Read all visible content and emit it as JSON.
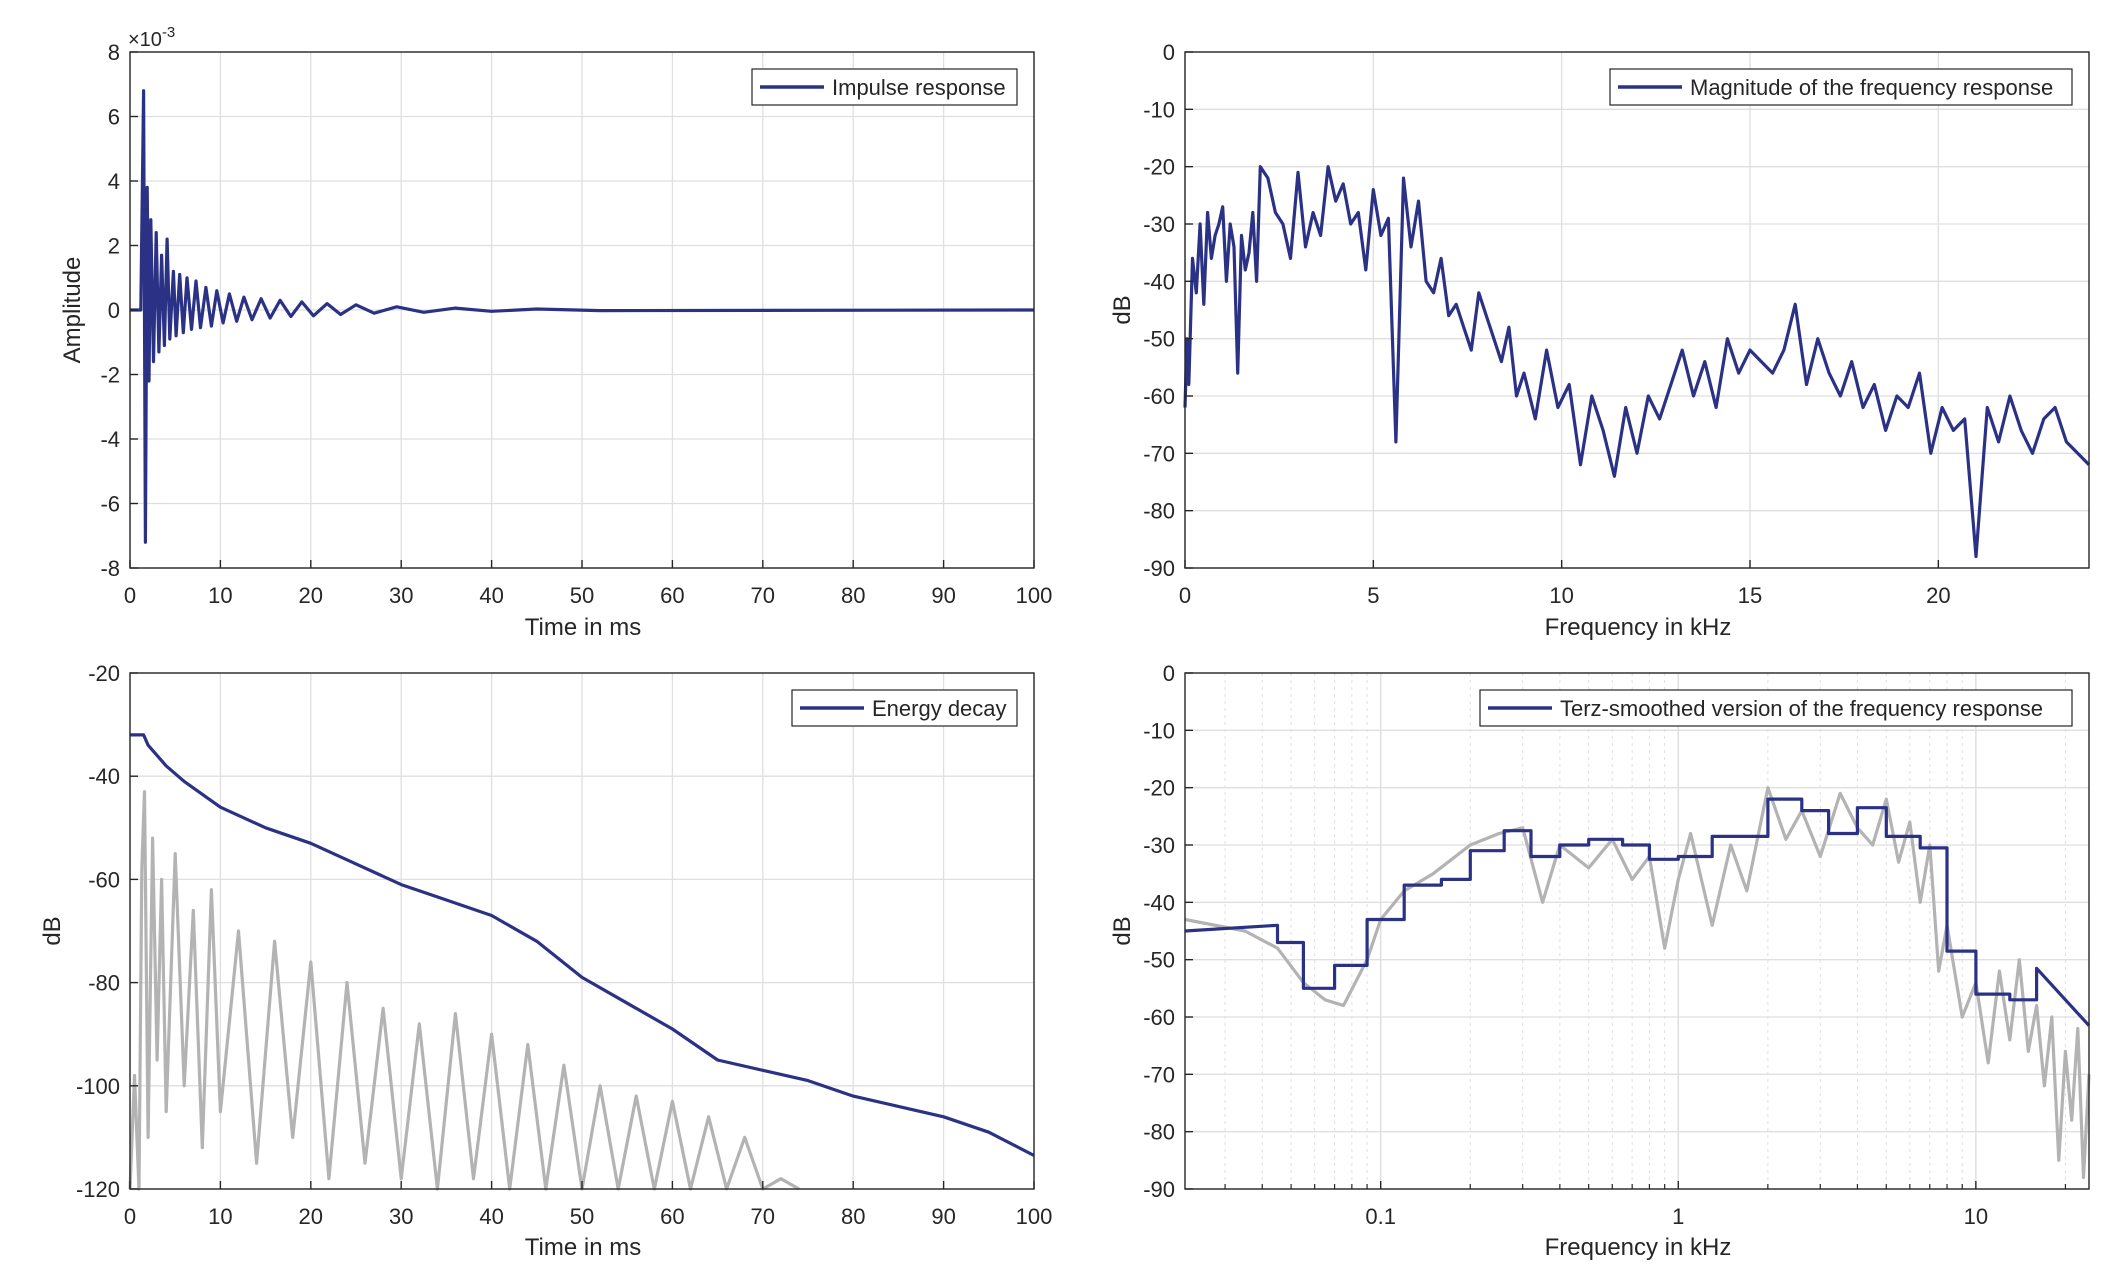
{
  "colors": {
    "series": "#2b3285",
    "secondary": "#b3b3b3",
    "axis": "#262626",
    "grid": "#dfdfdf",
    "background": "#ffffff"
  },
  "chart_data": [
    {
      "id": "impulse",
      "type": "line",
      "xlabel": "Time in ms",
      "ylabel": "Amplitude",
      "exponent_label": "×10^{-3}",
      "exponent_base": "×10",
      "exponent_power": "-3",
      "xlim": [
        0,
        100
      ],
      "ylim": [
        -8,
        8
      ],
      "xticks": [
        0,
        10,
        20,
        30,
        40,
        50,
        60,
        70,
        80,
        90,
        100
      ],
      "yticks": [
        -8,
        -6,
        -4,
        -2,
        0,
        2,
        4,
        6,
        8
      ],
      "grid": true,
      "legend_position": "top-right",
      "series": [
        {
          "name": "Impulse response",
          "x": [
            0,
            1.2,
            1.5,
            1.7,
            1.9,
            2.1,
            2.3,
            2.6,
            2.9,
            3.2,
            3.5,
            3.8,
            4.1,
            4.4,
            4.8,
            5.1,
            5.5,
            5.9,
            6.3,
            6.8,
            7.3,
            7.8,
            8.4,
            9.0,
            9.6,
            10.3,
            11.0,
            11.8,
            12.6,
            13.5,
            14.5,
            15.5,
            16.6,
            17.8,
            19.0,
            20.3,
            21.8,
            23.3,
            25.0,
            27.0,
            29.5,
            32.5,
            36.0,
            40.0,
            45.0,
            52.0,
            100.0
          ],
          "y": [
            0,
            0,
            6.8,
            -7.2,
            3.8,
            -2.2,
            2.8,
            -1.6,
            2.4,
            -1.3,
            1.7,
            -1.1,
            2.2,
            -0.9,
            1.2,
            -0.8,
            1.1,
            -0.7,
            1.0,
            -0.6,
            0.9,
            -0.55,
            0.7,
            -0.5,
            0.6,
            -0.4,
            0.5,
            -0.35,
            0.4,
            -0.3,
            0.35,
            -0.25,
            0.3,
            -0.2,
            0.25,
            -0.18,
            0.2,
            -0.14,
            0.16,
            -0.1,
            0.1,
            -0.07,
            0.06,
            -0.04,
            0.03,
            -0.02,
            0
          ]
        }
      ]
    },
    {
      "id": "magnitude",
      "type": "line",
      "xlabel": "Frequency in kHz",
      "ylabel": "dB",
      "xlim": [
        0,
        24
      ],
      "ylim": [
        -90,
        0
      ],
      "xticks": [
        0,
        5,
        10,
        15,
        20
      ],
      "yticks": [
        0,
        -10,
        -20,
        -30,
        -40,
        -50,
        -60,
        -70,
        -80,
        -90
      ],
      "grid": true,
      "legend_position": "top-right",
      "series": [
        {
          "name": "Magnitude of the frequency response",
          "x": [
            0,
            0.05,
            0.1,
            0.2,
            0.3,
            0.4,
            0.5,
            0.6,
            0.7,
            0.8,
            0.9,
            1.0,
            1.1,
            1.2,
            1.3,
            1.4,
            1.5,
            1.6,
            1.7,
            1.8,
            1.9,
            2.0,
            2.2,
            2.4,
            2.6,
            2.8,
            3.0,
            3.2,
            3.4,
            3.6,
            3.8,
            4.0,
            4.2,
            4.4,
            4.6,
            4.8,
            5.0,
            5.2,
            5.4,
            5.6,
            5.8,
            6.0,
            6.2,
            6.4,
            6.6,
            6.8,
            7.0,
            7.2,
            7.4,
            7.6,
            7.8,
            8.0,
            8.2,
            8.4,
            8.6,
            8.8,
            9.0,
            9.3,
            9.6,
            9.9,
            10.2,
            10.5,
            10.8,
            11.1,
            11.4,
            11.7,
            12.0,
            12.3,
            12.6,
            12.9,
            13.2,
            13.5,
            13.8,
            14.1,
            14.4,
            14.7,
            15.0,
            15.3,
            15.6,
            15.9,
            16.2,
            16.5,
            16.8,
            17.1,
            17.4,
            17.7,
            18.0,
            18.3,
            18.6,
            18.9,
            19.2,
            19.5,
            19.8,
            20.1,
            20.4,
            20.7,
            21.0,
            21.3,
            21.6,
            21.9,
            22.2,
            22.5,
            22.8,
            23.1,
            23.4,
            23.7,
            24.0
          ],
          "y": [
            -62,
            -50,
            -58,
            -36,
            -42,
            -30,
            -44,
            -28,
            -36,
            -32,
            -30,
            -27,
            -40,
            -30,
            -34,
            -56,
            -32,
            -38,
            -35,
            -28,
            -40,
            -20,
            -22,
            -28,
            -30,
            -36,
            -21,
            -34,
            -28,
            -32,
            -20,
            -26,
            -23,
            -30,
            -28,
            -38,
            -24,
            -32,
            -29,
            -68,
            -22,
            -34,
            -26,
            -40,
            -42,
            -36,
            -46,
            -44,
            -48,
            -52,
            -42,
            -46,
            -50,
            -54,
            -48,
            -60,
            -56,
            -64,
            -52,
            -62,
            -58,
            -72,
            -60,
            -66,
            -74,
            -62,
            -70,
            -60,
            -64,
            -58,
            -52,
            -60,
            -54,
            -62,
            -50,
            -56,
            -52,
            -54,
            -56,
            -52,
            -44,
            -58,
            -50,
            -56,
            -60,
            -54,
            -62,
            -58,
            -66,
            -60,
            -62,
            -56,
            -70,
            -62,
            -66,
            -64,
            -88,
            -62,
            -68,
            -60,
            -66,
            -70,
            -64,
            -62,
            -68,
            -70,
            -72
          ]
        }
      ]
    },
    {
      "id": "energy",
      "type": "line",
      "xlabel": "Time in ms",
      "ylabel": "dB",
      "xlim": [
        0,
        100
      ],
      "ylim": [
        -120,
        -20
      ],
      "xticks": [
        0,
        10,
        20,
        30,
        40,
        50,
        60,
        70,
        80,
        90,
        100
      ],
      "yticks": [
        -20,
        -40,
        -60,
        -80,
        -100,
        -120
      ],
      "grid": true,
      "legend_position": "top-right",
      "series": [
        {
          "name": "Energy decay",
          "x": [
            0,
            1.5,
            2,
            4,
            6,
            8,
            10,
            15,
            20,
            25,
            30,
            35,
            40,
            45,
            50,
            55,
            60,
            65,
            70,
            75,
            80,
            85,
            90,
            95,
            100
          ],
          "y": [
            -32,
            -32,
            -34,
            -38,
            -41,
            -43.5,
            -46,
            -50,
            -53,
            -57,
            -61,
            -64,
            -67,
            -72,
            -79,
            -84,
            -89,
            -95,
            -97,
            -99,
            -102,
            -104,
            -106,
            -109,
            -113.5
          ]
        },
        {
          "name": "",
          "x": [
            0,
            0.5,
            1,
            1.3,
            1.6,
            2,
            2.5,
            3,
            3.5,
            4,
            5,
            6,
            7,
            8,
            9,
            10,
            12,
            14,
            16,
            18,
            20,
            22,
            24,
            26,
            28,
            30,
            32,
            34,
            36,
            38,
            40,
            42,
            44,
            46,
            48,
            50,
            52,
            54,
            56,
            58,
            60,
            62,
            64,
            66,
            68,
            70,
            72,
            74
          ],
          "y": [
            -120,
            -98,
            -120,
            -58,
            -43,
            -110,
            -52,
            -95,
            -60,
            -105,
            -55,
            -100,
            -66,
            -112,
            -62,
            -105,
            -70,
            -115,
            -72,
            -110,
            -76,
            -118,
            -80,
            -115,
            -85,
            -118,
            -88,
            -120,
            -86,
            -118,
            -90,
            -120,
            -92,
            -120,
            -96,
            -120,
            -100,
            -120,
            -102,
            -120,
            -103,
            -120,
            -106,
            -120,
            -110,
            -120,
            -118,
            -120
          ]
        }
      ]
    },
    {
      "id": "terz",
      "type": "line",
      "xlabel": "Frequency in kHz",
      "ylabel": "dB",
      "xscale": "log",
      "xlim": [
        0.022,
        24
      ],
      "ylim": [
        -90,
        0
      ],
      "xtick_labels": [
        "0.1",
        "1",
        "10"
      ],
      "xticks": [
        0.1,
        1,
        10
      ],
      "yticks": [
        0,
        -10,
        -20,
        -30,
        -40,
        -50,
        -60,
        -70,
        -80,
        -90
      ],
      "grid": true,
      "legend_position": "top-right",
      "series": [
        {
          "name": "Terz-smoothed version of the frequency response",
          "x": [
            0.022,
            0.045,
            0.045,
            0.055,
            0.055,
            0.07,
            0.07,
            0.09,
            0.09,
            0.12,
            0.12,
            0.16,
            0.16,
            0.2,
            0.2,
            0.26,
            0.26,
            0.32,
            0.32,
            0.4,
            0.4,
            0.5,
            0.5,
            0.65,
            0.65,
            0.8,
            0.8,
            1.0,
            1.0,
            1.3,
            1.3,
            1.6,
            1.6,
            2.0,
            2.0,
            2.6,
            2.6,
            3.2,
            3.2,
            4.0,
            4.0,
            5.0,
            5.0,
            6.5,
            6.5,
            8.0,
            8.0,
            10.0,
            10.0,
            13.0,
            13.0,
            16.0,
            16.0,
            24.0
          ],
          "y": [
            -45,
            -44,
            -47,
            -47,
            -55,
            -55,
            -51,
            -51,
            -43,
            -43,
            -37,
            -37,
            -36,
            -36,
            -31,
            -31,
            -27.5,
            -27.5,
            -32,
            -32,
            -30,
            -30,
            -29,
            -29,
            -30,
            -30,
            -32.5,
            -32.5,
            -32,
            -32,
            -28.5,
            -28.5,
            -28.5,
            -28.5,
            -22,
            -22,
            -24,
            -24,
            -28,
            -28,
            -23.5,
            -23.5,
            -28.5,
            -28.5,
            -30.5,
            -30.5,
            -48.5,
            -48.5,
            -56,
            -56,
            -57,
            -57,
            -51.5,
            -61.5
          ]
        },
        {
          "name": "",
          "x": [
            0.022,
            0.035,
            0.045,
            0.055,
            0.065,
            0.075,
            0.09,
            0.1,
            0.12,
            0.15,
            0.2,
            0.25,
            0.3,
            0.35,
            0.4,
            0.5,
            0.6,
            0.7,
            0.8,
            0.9,
            1.0,
            1.1,
            1.3,
            1.5,
            1.7,
            2.0,
            2.3,
            2.6,
            3.0,
            3.5,
            4.0,
            4.5,
            5.0,
            5.5,
            6.0,
            6.5,
            7.0,
            7.5,
            8.0,
            9.0,
            10.0,
            11.0,
            12.0,
            13.0,
            14.0,
            15.0,
            16.0,
            17.0,
            18.0,
            19.0,
            20.0,
            21.0,
            22.0,
            23.0,
            24.0
          ],
          "y": [
            -43,
            -45,
            -48,
            -54,
            -57,
            -58,
            -50,
            -43,
            -38,
            -35,
            -30,
            -28,
            -27,
            -40,
            -30,
            -34,
            -29,
            -36,
            -32,
            -48,
            -36,
            -28,
            -44,
            -30,
            -38,
            -20,
            -29,
            -24,
            -32,
            -21,
            -27,
            -30,
            -22,
            -33,
            -26,
            -40,
            -30,
            -52,
            -44,
            -60,
            -54,
            -68,
            -52,
            -64,
            -50,
            -66,
            -58,
            -72,
            -60,
            -85,
            -66,
            -78,
            -62,
            -88,
            -70
          ]
        }
      ]
    }
  ]
}
